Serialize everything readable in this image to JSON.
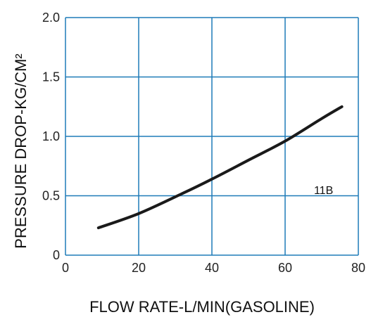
{
  "chart_data": {
    "type": "line",
    "title": "",
    "xlabel": "FLOW RATE-L/MIN(GASOLINE)",
    "ylabel": "PRESSURE DROP-KG/CM²",
    "xlim": [
      0,
      80
    ],
    "ylim": [
      0,
      2.0
    ],
    "x_ticks": [
      0,
      20,
      40,
      60,
      80
    ],
    "x_tick_labels": [
      "0",
      "20",
      "40",
      "60",
      "80"
    ],
    "y_ticks": [
      0,
      0.5,
      1.0,
      1.5,
      2.0
    ],
    "y_tick_labels": [
      "0",
      "0.5",
      "1.0",
      "1.5",
      "2.0"
    ],
    "grid": true,
    "colors": {
      "grid": "#1f7bb8",
      "line": "#1a1a1a"
    },
    "series": [
      {
        "name": "11B",
        "x": [
          9,
          20,
          32,
          40,
          50,
          60,
          70,
          75.5
        ],
        "y": [
          0.23,
          0.35,
          0.52,
          0.64,
          0.8,
          0.96,
          1.15,
          1.25
        ]
      }
    ]
  }
}
